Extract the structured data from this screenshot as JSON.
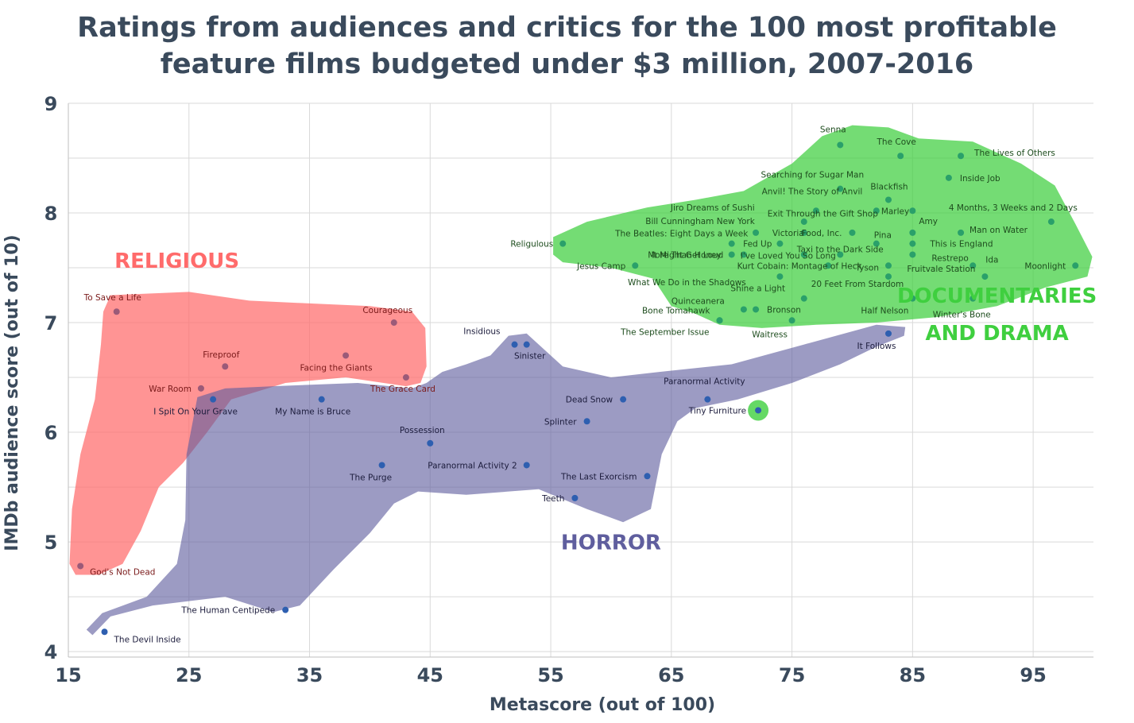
{
  "chart_data": {
    "type": "scatter",
    "title_lines": [
      "Ratings from audiences and critics for the 100 most profitable",
      "feature films budgeted under $3 million, 2007-2016"
    ],
    "xlabel": "Metascore (out of 100)",
    "ylabel": "IMDb audience score (out of 10)",
    "xlim": [
      15,
      100
    ],
    "ylim": [
      3.95,
      9
    ],
    "xticks": [
      15,
      25,
      35,
      45,
      55,
      65,
      75,
      85,
      95
    ],
    "yticks": [
      4,
      5,
      6,
      7,
      8,
      9
    ],
    "colors": {
      "religious": "#ff6b6b",
      "horror": "#5f5e9e",
      "documentary": "#3fcf3f",
      "religious_point": "#9b5a78",
      "horror_point": "#2e5fb0",
      "documentary_point": "#2aa06a",
      "religious_label": "#7a1a1a",
      "horror_label": "#1c1c3c",
      "documentary_label": "#1e4d1e"
    },
    "groups": [
      {
        "name": "RELIGIOUS",
        "key": "religious",
        "label_x": 24,
        "label_y": 7.5
      },
      {
        "name": "HORROR",
        "key": "horror",
        "label_x": 60,
        "label_y": 4.93
      },
      {
        "name": "DOCUMENTARIES",
        "key": "documentary",
        "label_x": 92,
        "label_y": 7.18
      },
      {
        "name": "AND DRAMA",
        "key": "documentary",
        "label_x": 92,
        "label_y": 6.84
      }
    ],
    "series": [
      {
        "name": "Religious",
        "key": "religious",
        "points": [
          {
            "label": "To Save a Life",
            "x": 19,
            "y": 7.1,
            "anchor": "middle",
            "dx": -5,
            "dy": -14
          },
          {
            "label": "Courageous",
            "x": 42,
            "y": 7.0,
            "anchor": "middle",
            "dx": -8,
            "dy": -12
          },
          {
            "label": "Fireproof",
            "x": 28,
            "y": 6.6,
            "anchor": "middle",
            "dx": -5,
            "dy": -11
          },
          {
            "label": "Facing the Giants",
            "x": 38,
            "y": 6.7,
            "anchor": "middle",
            "dx": -12,
            "dy": 19
          },
          {
            "label": "War Room",
            "x": 26,
            "y": 6.4,
            "anchor": "end",
            "dx": -12,
            "dy": 4
          },
          {
            "label": "The Grace Card",
            "x": 43,
            "y": 6.5,
            "anchor": "middle",
            "dx": -4,
            "dy": 18
          },
          {
            "label": "God's Not Dead",
            "x": 16,
            "y": 4.78,
            "anchor": "start",
            "dx": 12,
            "dy": 11
          }
        ]
      },
      {
        "name": "Horror",
        "key": "horror",
        "points": [
          {
            "label": "I Spit On Your Grave",
            "x": 27,
            "y": 6.3,
            "anchor": "middle",
            "dx": -22,
            "dy": 19
          },
          {
            "label": "My Name is Bruce",
            "x": 36,
            "y": 6.3,
            "anchor": "middle",
            "dx": -11,
            "dy": 19
          },
          {
            "label": "Insidious",
            "x": 52,
            "y": 6.8,
            "anchor": "end",
            "dx": -18,
            "dy": -13
          },
          {
            "label": "Sinister",
            "x": 53,
            "y": 6.8,
            "anchor": "middle",
            "dx": 4,
            "dy": 18
          },
          {
            "label": "Dead Snow",
            "x": 61,
            "y": 6.3,
            "anchor": "end",
            "dx": -13,
            "dy": 4
          },
          {
            "label": "Paranormal Activity",
            "x": 68,
            "y": 6.3,
            "anchor": "middle",
            "dx": -4,
            "dy": -19
          },
          {
            "label": "Tiny Furniture",
            "x": 72.2,
            "y": 6.2,
            "anchor": "end",
            "dx": -15,
            "dy": 4
          },
          {
            "label": "Possession",
            "x": 45,
            "y": 5.9,
            "anchor": "middle",
            "dx": -10,
            "dy": -13
          },
          {
            "label": "Splinter",
            "x": 58,
            "y": 6.1,
            "anchor": "end",
            "dx": -13,
            "dy": 4
          },
          {
            "label": "The Purge",
            "x": 41,
            "y": 5.7,
            "anchor": "middle",
            "dx": -14,
            "dy": 19
          },
          {
            "label": "Paranormal Activity 2",
            "x": 53,
            "y": 5.7,
            "anchor": "end",
            "dx": -12,
            "dy": 4
          },
          {
            "label": "The Last Exorcism",
            "x": 63,
            "y": 5.6,
            "anchor": "end",
            "dx": -13,
            "dy": 4
          },
          {
            "label": "Teeth",
            "x": 57,
            "y": 5.4,
            "anchor": "end",
            "dx": -13,
            "dy": 4
          },
          {
            "label": "It Follows",
            "x": 83,
            "y": 6.9,
            "anchor": "middle",
            "dx": -15,
            "dy": 19
          },
          {
            "label": "The Human Centipede",
            "x": 33,
            "y": 4.38,
            "anchor": "end",
            "dx": -13,
            "dy": 4
          },
          {
            "label": "The Devil Inside",
            "x": 18,
            "y": 4.18,
            "anchor": "start",
            "dx": 12,
            "dy": 13
          }
        ]
      },
      {
        "name": "Documentaries and Drama",
        "key": "documentary",
        "points": [
          {
            "label": "Senna",
            "x": 79,
            "y": 8.62,
            "anchor": "middle",
            "dx": -9,
            "dy": -16
          },
          {
            "label": "The Cove",
            "x": 84,
            "y": 8.52,
            "anchor": "middle",
            "dx": -5,
            "dy": -14
          },
          {
            "label": "The Lives of Others",
            "x": 89,
            "y": 8.52,
            "anchor": "start",
            "dx": 17,
            "dy": 0
          },
          {
            "label": "Inside Job",
            "x": 88,
            "y": 8.32,
            "anchor": "start",
            "dx": 14,
            "dy": 4
          },
          {
            "label": "Searching for Sugar Man",
            "x": 79,
            "y": 8.22,
            "anchor": "middle",
            "dx": -35,
            "dy": -14
          },
          {
            "label": "Blackfish",
            "x": 83,
            "y": 8.12,
            "anchor": "middle",
            "dx": 1,
            "dy": -13
          },
          {
            "label": "Anvil! The Story of Anvil",
            "x": 77,
            "y": 8.02,
            "anchor": "middle",
            "dx": -5,
            "dy": -21
          },
          {
            "label": "Jiro Dreams of Sushi",
            "x": 76,
            "y": 7.92,
            "anchor": "middle",
            "dx": -115,
            "dy": -14
          },
          {
            "label": "Marley",
            "x": 82,
            "y": 8.02,
            "anchor": "start",
            "dx": 6,
            "dy": 4
          },
          {
            "label": "Exit Through the Gift Shop",
            "x": 85,
            "y": 8.02,
            "anchor": "middle",
            "dx": -113,
            "dy": 7
          },
          {
            "label": "4 Months, 3 Weeks and 2 Days",
            "x": 96.5,
            "y": 7.92,
            "anchor": "middle",
            "dx": -48,
            "dy": -14
          },
          {
            "label": "Bill Cunningham New York",
            "x": 72,
            "y": 7.82,
            "anchor": "middle",
            "dx": -70,
            "dy": -11
          },
          {
            "label": "Amy",
            "x": 85,
            "y": 7.82,
            "anchor": "start",
            "dx": 8,
            "dy": -11
          },
          {
            "label": "The Beatles: Eight Days a Week",
            "x": 70,
            "y": 7.72,
            "anchor": "middle",
            "dx": -63,
            "dy": -9
          },
          {
            "label": "Victoria",
            "x": 76,
            "y": 7.82,
            "anchor": "middle",
            "dx": -20,
            "dy": 4
          },
          {
            "label": "Food, Inc.",
            "x": 80,
            "y": 7.82,
            "anchor": "end",
            "dx": -13,
            "dy": 4
          },
          {
            "label": "Man on Water",
            "x": 89,
            "y": 7.82,
            "anchor": "start",
            "dx": 11,
            "dy": 0
          },
          {
            "label": "Pina",
            "x": 82,
            "y": 7.72,
            "anchor": "middle",
            "dx": 8,
            "dy": -7
          },
          {
            "label": "Religulous",
            "x": 56,
            "y": 7.72,
            "anchor": "end",
            "dx": -12,
            "dy": 4
          },
          {
            "label": "It Might Get Loud",
            "x": 71,
            "y": 7.62,
            "anchor": "middle",
            "dx": -71,
            "dy": 4
          },
          {
            "label": "Fed Up",
            "x": 74,
            "y": 7.72,
            "anchor": "end",
            "dx": -10,
            "dy": 4
          },
          {
            "label": "This is England",
            "x": 85,
            "y": 7.72,
            "anchor": "start",
            "dx": 22,
            "dy": 4
          },
          {
            "label": "More Than Honey",
            "x": 70,
            "y": 7.62,
            "anchor": "end",
            "dx": -13,
            "dy": 4
          },
          {
            "label": "Taxi to the Dark Side",
            "x": 79,
            "y": 7.62,
            "anchor": "middle",
            "dx": 0,
            "dy": -3
          },
          {
            "label": "I've Loved You So Long",
            "x": 76,
            "y": 7.62,
            "anchor": "middle",
            "dx": -20,
            "dy": 5
          },
          {
            "label": "Restrepo",
            "x": 85,
            "y": 7.62,
            "anchor": "start",
            "dx": 24,
            "dy": 8
          },
          {
            "label": "Jesus Camp",
            "x": 62,
            "y": 7.52,
            "anchor": "end",
            "dx": -12,
            "dy": 4
          },
          {
            "label": "Kurt Cobain: Montage of Heck",
            "x": 78,
            "y": 7.52,
            "anchor": "middle",
            "dx": -36,
            "dy": 4
          },
          {
            "label": "Tyson",
            "x": 83,
            "y": 7.52,
            "anchor": "end",
            "dx": -12,
            "dy": 6
          },
          {
            "label": "Ida",
            "x": 90,
            "y": 7.52,
            "anchor": "start",
            "dx": 16,
            "dy": -4
          },
          {
            "label": "Moonlight",
            "x": 98.5,
            "y": 7.52,
            "anchor": "end",
            "dx": -12,
            "dy": 4
          },
          {
            "label": "What We Do in the Shadows",
            "x": 74,
            "y": 7.42,
            "anchor": "middle",
            "dx": -117,
            "dy": 11
          },
          {
            "label": "Fruitvale Station",
            "x": 91,
            "y": 7.42,
            "anchor": "end",
            "dx": -12,
            "dy": -6
          },
          {
            "label": "20 Feet From Stardom",
            "x": 83,
            "y": 7.42,
            "anchor": "middle",
            "dx": -39,
            "dy": 13
          },
          {
            "label": "Shine a Light",
            "x": 76,
            "y": 7.22,
            "anchor": "middle",
            "dx": -58,
            "dy": -9
          },
          {
            "label": "Quinceanera",
            "x": 71,
            "y": 7.12,
            "anchor": "end",
            "dx": -24,
            "dy": -7
          },
          {
            "label": "Bone Tomahawk",
            "x": 69,
            "y": 7.02,
            "anchor": "end",
            "dx": -12,
            "dy": -9
          },
          {
            "label": "Bronson",
            "x": 72,
            "y": 7.12,
            "anchor": "start",
            "dx": 14,
            "dy": 4
          },
          {
            "label": "Half Nelson",
            "x": 85,
            "y": 7.22,
            "anchor": "middle",
            "dx": -35,
            "dy": 19
          },
          {
            "label": "Winter's Bone",
            "x": 90,
            "y": 7.22,
            "anchor": "middle",
            "dx": -14,
            "dy": 24
          },
          {
            "label": "The September Issue",
            "x": 69,
            "y": 7.02,
            "anchor": "end",
            "dx": -13,
            "dy": 18
          },
          {
            "label": "Waitress",
            "x": 75,
            "y": 7.02,
            "anchor": "middle",
            "dx": -28,
            "dy": 21
          }
        ]
      }
    ],
    "highlight": {
      "x": 72.2,
      "y": 6.2
    }
  }
}
